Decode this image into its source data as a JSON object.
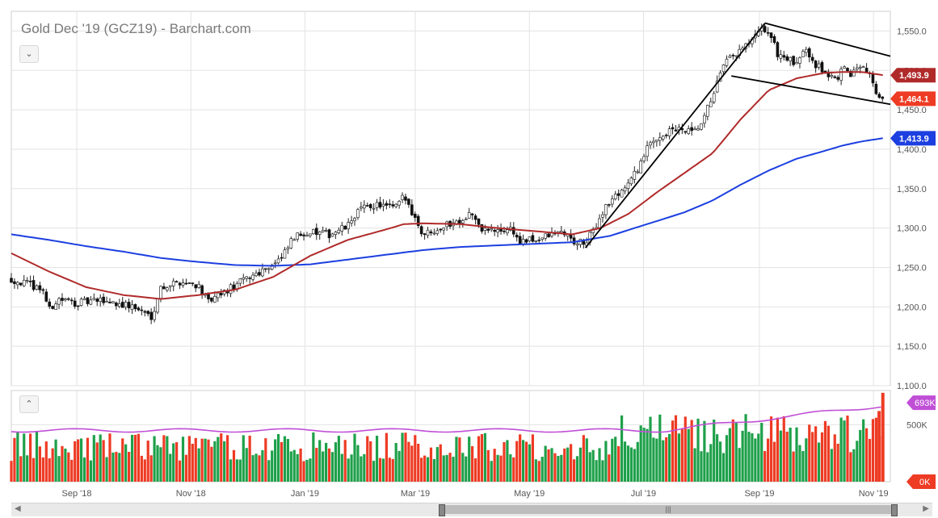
{
  "header": {
    "title": "Gold Dec '19 (GCZ19) - Barchart.com",
    "expand_icon": "chevron-down-icon",
    "volume_toggle_icon": "chevron-up-icon"
  },
  "colors": {
    "up": "#1ea04a",
    "down": "#ee3b24",
    "wick": "#222222",
    "ma50": "#b02a2a",
    "ma200": "#1c3fe0",
    "vol_ma": "#c04fd6",
    "trendline": "#000000",
    "grid": "#e3e3e3",
    "axis_text": "#555555"
  },
  "chart_data": {
    "type": "candlestick",
    "symbol": "GCZ19",
    "title": "Gold Dec '19 (GCZ19) - Barchart.com",
    "ylim": [
      1100,
      1575
    ],
    "y_ticks": [
      1100,
      1150,
      1200,
      1250,
      1300,
      1350,
      1400,
      1450,
      1500,
      1550
    ],
    "y_tick_labels": [
      "1,100.0",
      "1,150.0",
      "1,200.0",
      "1,250.0",
      "1,300.0",
      "1,350.0",
      "1,400.0",
      "1,450.0",
      "1,500.0",
      "1,550.0"
    ],
    "x_labels": [
      {
        "label": "Sep '18",
        "day": 15
      },
      {
        "label": "Nov '18",
        "day": 76
      },
      {
        "label": "Jan '19",
        "day": 137
      },
      {
        "label": "Mar '19",
        "day": 196
      },
      {
        "label": "May '19",
        "day": 257
      },
      {
        "label": "Jul '19",
        "day": 318
      },
      {
        "label": "Sep '19",
        "day": 380
      },
      {
        "label": "Nov '19",
        "day": 441
      }
    ],
    "x_range_days": [
      -20,
      450
    ],
    "price_path": [
      [
        -20,
        1235
      ],
      [
        -10,
        1228
      ],
      [
        -3,
        1222
      ],
      [
        0,
        1195
      ],
      [
        5,
        1210
      ],
      [
        15,
        1205
      ],
      [
        30,
        1208
      ],
      [
        45,
        1200
      ],
      [
        55,
        1188
      ],
      [
        60,
        1225
      ],
      [
        70,
        1232
      ],
      [
        80,
        1228
      ],
      [
        85,
        1205
      ],
      [
        95,
        1220
      ],
      [
        105,
        1235
      ],
      [
        115,
        1248
      ],
      [
        125,
        1262
      ],
      [
        130,
        1285
      ],
      [
        137,
        1295
      ],
      [
        150,
        1292
      ],
      [
        160,
        1302
      ],
      [
        165,
        1322
      ],
      [
        175,
        1330
      ],
      [
        185,
        1325
      ],
      [
        190,
        1340
      ],
      [
        195,
        1318
      ],
      [
        200,
        1292
      ],
      [
        210,
        1302
      ],
      [
        220,
        1310
      ],
      [
        226,
        1320
      ],
      [
        230,
        1300
      ],
      [
        240,
        1295
      ],
      [
        247,
        1300
      ],
      [
        252,
        1282
      ],
      [
        260,
        1285
      ],
      [
        270,
        1292
      ],
      [
        275,
        1296
      ],
      [
        280,
        1283
      ],
      [
        287,
        1280
      ],
      [
        292,
        1300
      ],
      [
        297,
        1325
      ],
      [
        305,
        1345
      ],
      [
        312,
        1362
      ],
      [
        320,
        1400
      ],
      [
        325,
        1415
      ],
      [
        335,
        1425
      ],
      [
        345,
        1420
      ],
      [
        350,
        1435
      ],
      [
        355,
        1470
      ],
      [
        362,
        1510
      ],
      [
        370,
        1525
      ],
      [
        375,
        1535
      ],
      [
        382,
        1553
      ],
      [
        385,
        1548
      ],
      [
        390,
        1520
      ],
      [
        395,
        1515
      ],
      [
        400,
        1505
      ],
      [
        404,
        1533
      ],
      [
        410,
        1508
      ],
      [
        415,
        1498
      ],
      [
        420,
        1488
      ],
      [
        425,
        1500
      ],
      [
        430,
        1495
      ],
      [
        435,
        1512
      ],
      [
        440,
        1490
      ],
      [
        443,
        1470
      ],
      [
        446,
        1462
      ]
    ],
    "ma50_path": [
      [
        -20,
        1268
      ],
      [
        0,
        1245
      ],
      [
        20,
        1225
      ],
      [
        40,
        1215
      ],
      [
        60,
        1210
      ],
      [
        80,
        1215
      ],
      [
        100,
        1222
      ],
      [
        120,
        1238
      ],
      [
        140,
        1265
      ],
      [
        160,
        1285
      ],
      [
        180,
        1298
      ],
      [
        190,
        1305
      ],
      [
        200,
        1306
      ],
      [
        220,
        1305
      ],
      [
        240,
        1300
      ],
      [
        260,
        1296
      ],
      [
        280,
        1292
      ],
      [
        295,
        1300
      ],
      [
        310,
        1318
      ],
      [
        325,
        1345
      ],
      [
        340,
        1370
      ],
      [
        355,
        1395
      ],
      [
        370,
        1438
      ],
      [
        385,
        1475
      ],
      [
        400,
        1490
      ],
      [
        415,
        1497
      ],
      [
        425,
        1498
      ],
      [
        435,
        1498
      ],
      [
        446,
        1494
      ]
    ],
    "ma200_path": [
      [
        -20,
        1292
      ],
      [
        0,
        1285
      ],
      [
        20,
        1277
      ],
      [
        40,
        1270
      ],
      [
        60,
        1262
      ],
      [
        80,
        1257
      ],
      [
        100,
        1253
      ],
      [
        120,
        1252
      ],
      [
        140,
        1254
      ],
      [
        160,
        1260
      ],
      [
        180,
        1266
      ],
      [
        200,
        1272
      ],
      [
        220,
        1276
      ],
      [
        240,
        1278
      ],
      [
        260,
        1280
      ],
      [
        280,
        1282
      ],
      [
        300,
        1290
      ],
      [
        320,
        1305
      ],
      [
        340,
        1320
      ],
      [
        355,
        1335
      ],
      [
        370,
        1355
      ],
      [
        385,
        1373
      ],
      [
        400,
        1388
      ],
      [
        415,
        1398
      ],
      [
        425,
        1405
      ],
      [
        435,
        1410
      ],
      [
        446,
        1414
      ]
    ],
    "trendlines": [
      {
        "from": [
          287,
          1275
        ],
        "to": [
          383,
          1560
        ]
      },
      {
        "from": [
          383,
          1560
        ],
        "to": [
          450,
          1518
        ]
      },
      {
        "from": [
          365,
          1493
        ],
        "to": [
          450,
          1457
        ]
      }
    ],
    "price_labels": [
      {
        "name": "ma50-last",
        "label": "1,493.9",
        "value": 1493.9,
        "color": "#b02a2a"
      },
      {
        "name": "last-price",
        "label": "1,464.1",
        "value": 1464.1,
        "color": "#ee3b24"
      },
      {
        "name": "ma200-last",
        "label": "1,413.9",
        "value": 1413.9,
        "color": "#1c3fe0"
      }
    ],
    "volume": {
      "ylim": [
        0,
        800
      ],
      "y_tick": "500K",
      "y_tick_value": 500,
      "last_label": "693K",
      "zero_label": "0K",
      "ma_level_start": 450,
      "ma_level_end": 693
    }
  }
}
